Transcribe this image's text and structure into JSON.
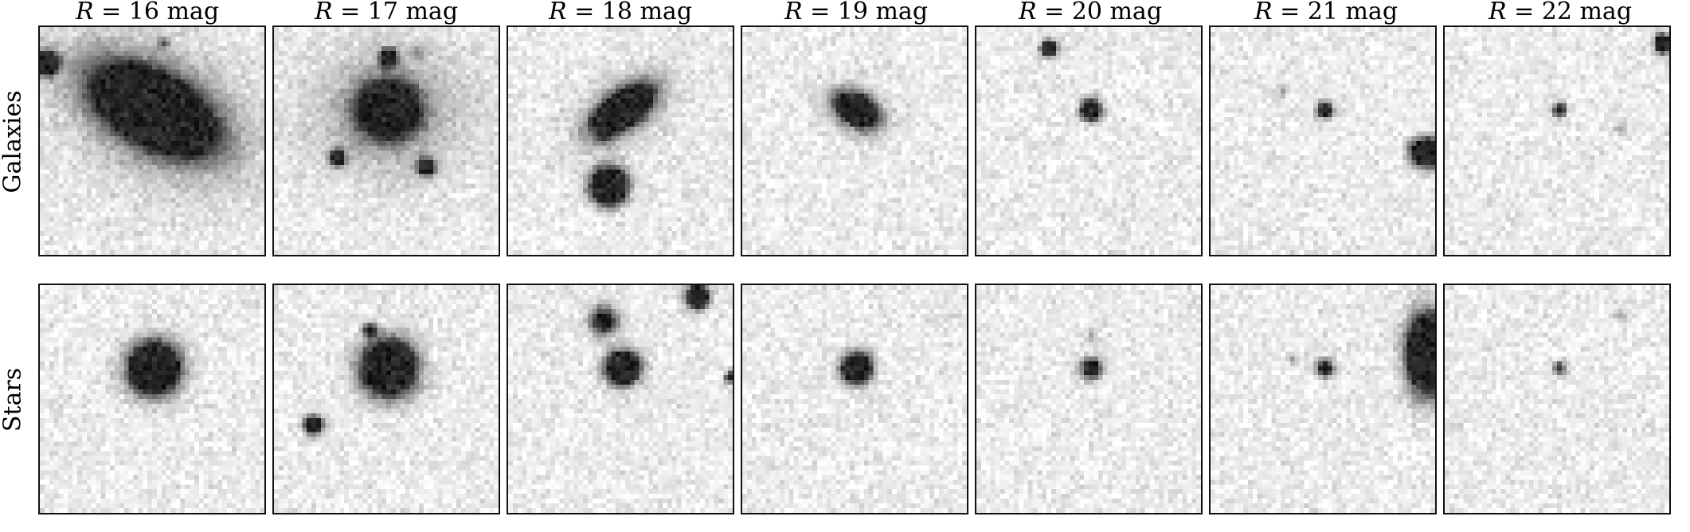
{
  "columns": [
    {
      "title_prefix": "R",
      "title_text": " = 16 mag",
      "magnitude": 16
    },
    {
      "title_prefix": "R",
      "title_text": " = 17 mag",
      "magnitude": 17
    },
    {
      "title_prefix": "R",
      "title_text": " = 18 mag",
      "magnitude": 18
    },
    {
      "title_prefix": "R",
      "title_text": " = 19 mag",
      "magnitude": 19
    },
    {
      "title_prefix": "R",
      "title_text": " = 20 mag",
      "magnitude": 20
    },
    {
      "title_prefix": "R",
      "title_text": " = 21 mag",
      "magnitude": 21
    },
    {
      "title_prefix": "R",
      "title_text": " = 22 mag",
      "magnitude": 22
    }
  ],
  "rows": [
    {
      "label": "Galaxies"
    },
    {
      "label": "Stars"
    }
  ]
}
